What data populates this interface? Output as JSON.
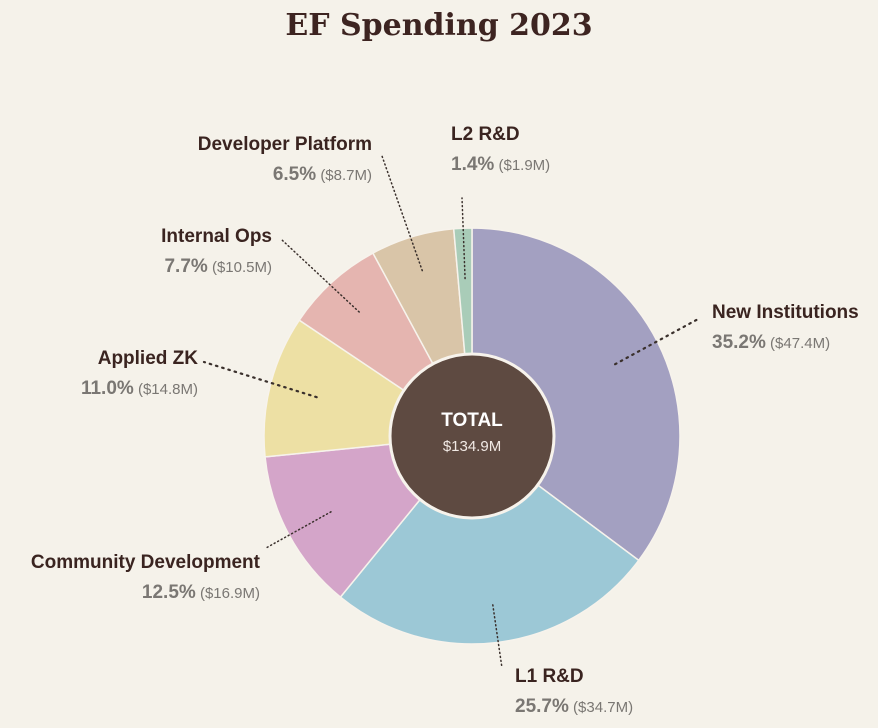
{
  "chart_data": {
    "type": "pie",
    "variant": "donut",
    "title": "EF Spending 2023",
    "center_label": "TOTAL",
    "center_value": "$134.9M",
    "start": "top",
    "direction": "clockwise",
    "slices": [
      {
        "name": "New Institutions",
        "percent": 35.2,
        "pct_label": "35.2%",
        "amount_label": "($47.4M)",
        "value": 47.4,
        "color": "#a3a0c1"
      },
      {
        "name": "L1 R&D",
        "percent": 25.7,
        "pct_label": "25.7%",
        "amount_label": "($34.7M)",
        "value": 34.7,
        "color": "#9cc8d6"
      },
      {
        "name": "Community Development",
        "percent": 12.5,
        "pct_label": "12.5%",
        "amount_label": "($16.9M)",
        "value": 16.9,
        "color": "#d4a5c9"
      },
      {
        "name": "Applied ZK",
        "percent": 11.0,
        "pct_label": "11.0%",
        "amount_label": "($14.8M)",
        "value": 14.8,
        "color": "#ede0a4"
      },
      {
        "name": "Internal Ops",
        "percent": 7.7,
        "pct_label": "7.7%",
        "amount_label": "($10.5M)",
        "value": 10.5,
        "color": "#e5b5b0"
      },
      {
        "name": "Developer Platform",
        "percent": 6.5,
        "pct_label": "6.5%",
        "amount_label": "($8.7M)",
        "value": 8.7,
        "color": "#d9c5a8"
      },
      {
        "name": "L2 R&D",
        "percent": 1.4,
        "pct_label": "1.4%",
        "amount_label": "($1.9M)",
        "value": 1.9,
        "color": "#a9ccb8"
      }
    ]
  },
  "colors": {
    "background": "#f5f2ea",
    "center_fill": "#5e4a41",
    "title": "#3d2421"
  }
}
